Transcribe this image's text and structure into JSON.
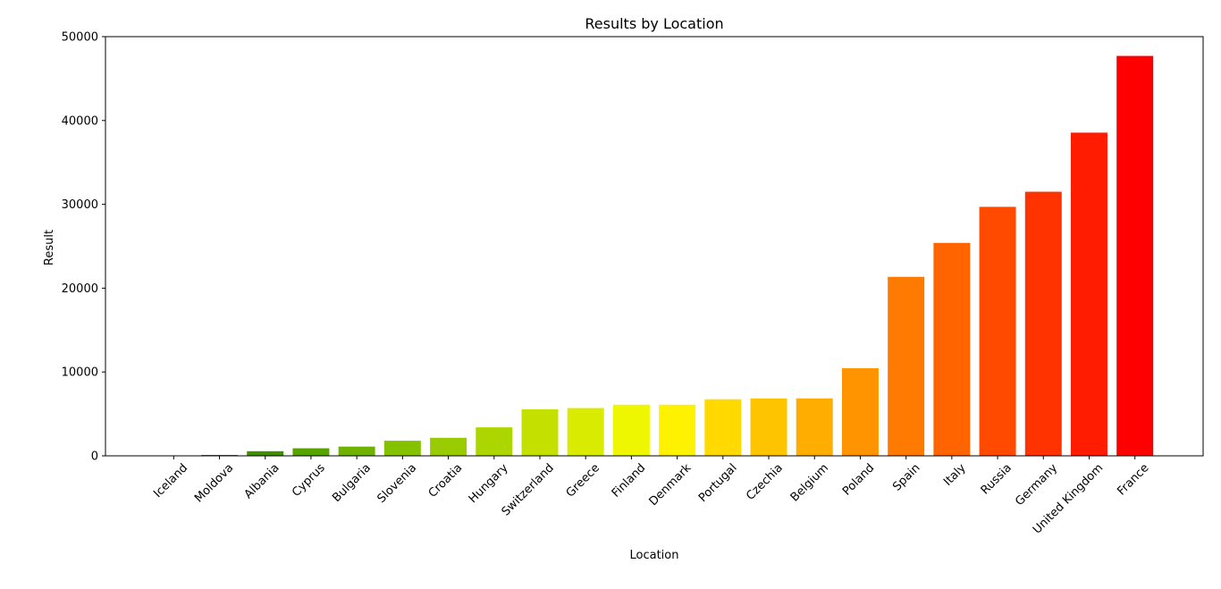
{
  "chart_data": {
    "type": "bar",
    "title": "Results by Location",
    "xlabel": "Location",
    "ylabel": "Result",
    "ylim": [
      0,
      50000
    ],
    "yticks": [
      0,
      10000,
      20000,
      30000,
      40000,
      50000
    ],
    "categories": [
      "Iceland",
      "Moldova",
      "Albania",
      "Cyprus",
      "Bulgaria",
      "Slovenia",
      "Croatia",
      "Hungary",
      "Switzerland",
      "Greece",
      "Finland",
      "Denmark",
      "Portugal",
      "Czechia",
      "Belgium",
      "Poland",
      "Spain",
      "Italy",
      "Russia",
      "Germany",
      "United Kingdom",
      "France"
    ],
    "values": [
      10,
      100,
      550,
      900,
      1100,
      1800,
      2150,
      3400,
      5550,
      5700,
      6100,
      6100,
      6750,
      6850,
      6850,
      10450,
      21350,
      25400,
      29700,
      31500,
      38550,
      47700
    ],
    "colors": [
      "#006400",
      "#237a00",
      "#3f8f00",
      "#57a300",
      "#6fb300",
      "#84c200",
      "#99cc00",
      "#add600",
      "#c3e000",
      "#d9eb00",
      "#eef700",
      "#fff200",
      "#ffd900",
      "#ffc400",
      "#ffad00",
      "#ff9400",
      "#ff7a00",
      "#ff6400",
      "#ff4a00",
      "#ff3300",
      "#ff1c00",
      "#ff0000"
    ],
    "x_tick_rotation": 45,
    "grid": false
  }
}
